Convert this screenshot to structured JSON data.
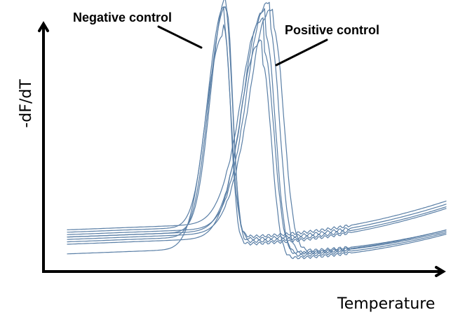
{
  "chart_data": {
    "type": "line",
    "title": "",
    "xlabel": "Temperature",
    "ylabel": "-dF/dT",
    "annotations": [
      "Negative control",
      "Positive control"
    ],
    "colors": {
      "curve": "#5a7fa6",
      "axis": "#000000",
      "text": "#000000"
    },
    "grid": false,
    "legend": "none",
    "groups": [
      {
        "label": "Negative control",
        "curves": [
          {
            "peak": 0.97,
            "center": 0.42,
            "width": 0.03,
            "base_left": 0.12,
            "base_right": 0.1,
            "shoulder": 0.25
          },
          {
            "peak": 0.95,
            "center": 0.418,
            "width": 0.032,
            "base_left": 0.1,
            "base_right": 0.11,
            "shoulder": 0.27
          },
          {
            "peak": 0.91,
            "center": 0.414,
            "width": 0.031,
            "base_left": 0.14,
            "base_right": 0.09,
            "shoulder": 0.24
          },
          {
            "peak": 0.88,
            "center": 0.412,
            "width": 0.035,
            "base_left": 0.05,
            "base_right": 0.12,
            "shoulder": 0.26
          }
        ]
      },
      {
        "label": "Positive control",
        "curves": [
          {
            "peak": 0.93,
            "center": 0.535,
            "width": 0.045,
            "base_left": 0.13,
            "base_right": 0.05,
            "shoulder": 0.48
          },
          {
            "peak": 0.92,
            "center": 0.545,
            "width": 0.048,
            "base_left": 0.11,
            "base_right": 0.06,
            "shoulder": 0.5
          },
          {
            "peak": 0.91,
            "center": 0.525,
            "width": 0.044,
            "base_left": 0.12,
            "base_right": 0.04,
            "shoulder": 0.47
          },
          {
            "peak": 0.84,
            "center": 0.52,
            "width": 0.046,
            "base_left": 0.15,
            "base_right": 0.05,
            "shoulder": 0.46
          },
          {
            "peak": 0.81,
            "center": 0.515,
            "width": 0.043,
            "base_left": 0.09,
            "base_right": 0.03,
            "shoulder": 0.45
          }
        ]
      }
    ]
  }
}
